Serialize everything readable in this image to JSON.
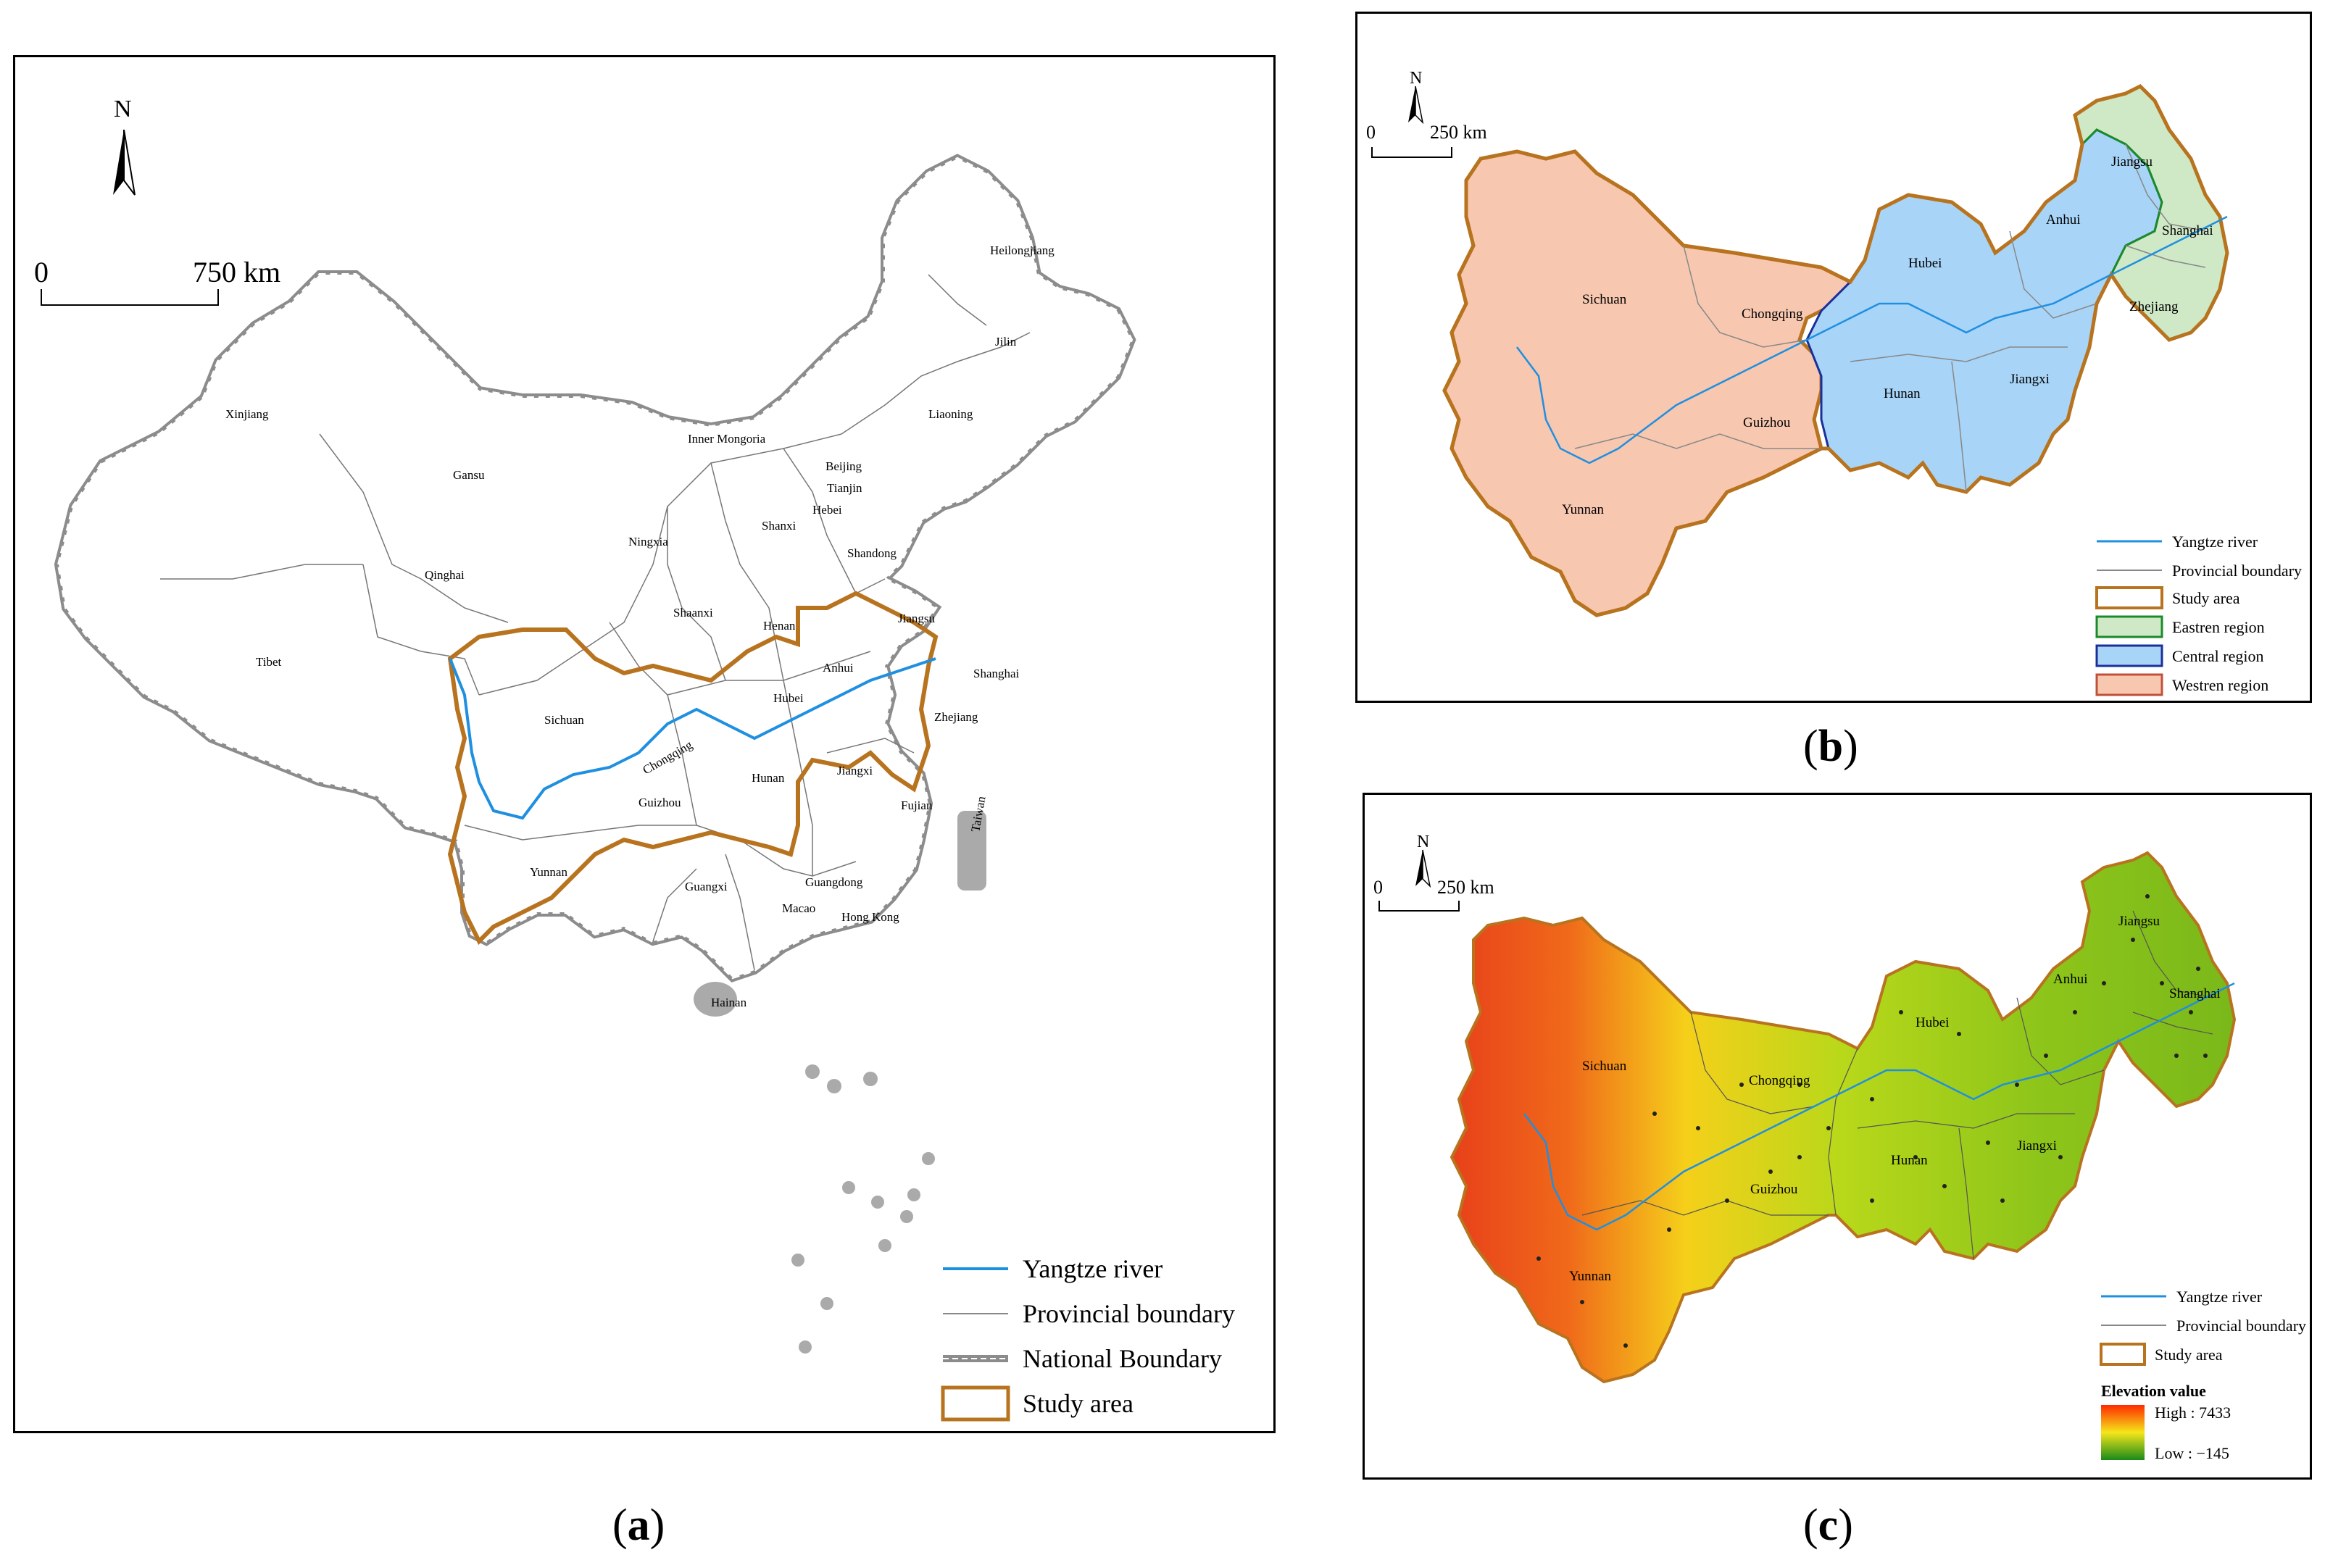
{
  "captions": {
    "a": "a",
    "b": "b",
    "c": "c"
  },
  "colors": {
    "study_area": "#b8731f",
    "yangtze": "#1f8fe0",
    "eastern": "#cfe8c6",
    "central": "#a8d4f7",
    "western": "#f7c7b0",
    "eastern_border": "#1a8a2a",
    "central_border": "#1a2f9a",
    "western_border": "#c0503a",
    "national": "#9a9a9a"
  },
  "panel_a": {
    "north": "N",
    "scale_zero": "0",
    "scale_end": "750 km",
    "provinces": [
      "Heilongjiang",
      "Jilin",
      "Liaoning",
      "Xinjiang",
      "Inner Mongoria",
      "Gansu",
      "Beijing",
      "Tianjin",
      "Hebei",
      "Ningxia",
      "Shanxi",
      "Shandong",
      "Qinghai",
      "Shaanxi",
      "Henan",
      "Jiangsu",
      "Tibet",
      "Anhui",
      "Shanghai",
      "Sichuan",
      "Hubei",
      "Zhejiang",
      "Chongqing",
      "Hunan",
      "Jiangxi",
      "Guizhou",
      "Fujian",
      "Yunnan",
      "Guangxi",
      "Guangdong",
      "Taiwan",
      "Macao",
      "Hong Kong",
      "Hainan"
    ],
    "legend": [
      {
        "label": "Yangtze river"
      },
      {
        "label": "Provincial boundary"
      },
      {
        "label": "National Boundary"
      },
      {
        "label": "Study area"
      }
    ]
  },
  "panel_b": {
    "north": "N",
    "scale_zero": "0",
    "scale_end": "250 km",
    "provinces": [
      "Jiangsu",
      "Anhui",
      "Shanghai",
      "Hubei",
      "Sichuan",
      "Chongqing",
      "Zhejiang",
      "Hunan",
      "Jiangxi",
      "Guizhou",
      "Yunnan"
    ],
    "legend": [
      {
        "label": "Yangtze river"
      },
      {
        "label": "Provincial boundary"
      },
      {
        "label": "Study area"
      },
      {
        "label": "Eastren region"
      },
      {
        "label": "Central region"
      },
      {
        "label": "Westren region"
      }
    ]
  },
  "panel_c": {
    "north": "N",
    "scale_zero": "0",
    "scale_end": "250 km",
    "provinces": [
      "Jiangsu",
      "Anhui",
      "Shanghai",
      "Sichuan",
      "Hubei",
      "Chongqing",
      "Jiangxi",
      "Hunan",
      "Guizhou",
      "Yunnan"
    ],
    "legend": [
      {
        "label": "Yangtze river"
      },
      {
        "label": "Provincial boundary"
      },
      {
        "label": "Study area"
      }
    ],
    "elevation_title": "Elevation value",
    "elevation_high": "High : 7433",
    "elevation_low": "Low : −145"
  }
}
